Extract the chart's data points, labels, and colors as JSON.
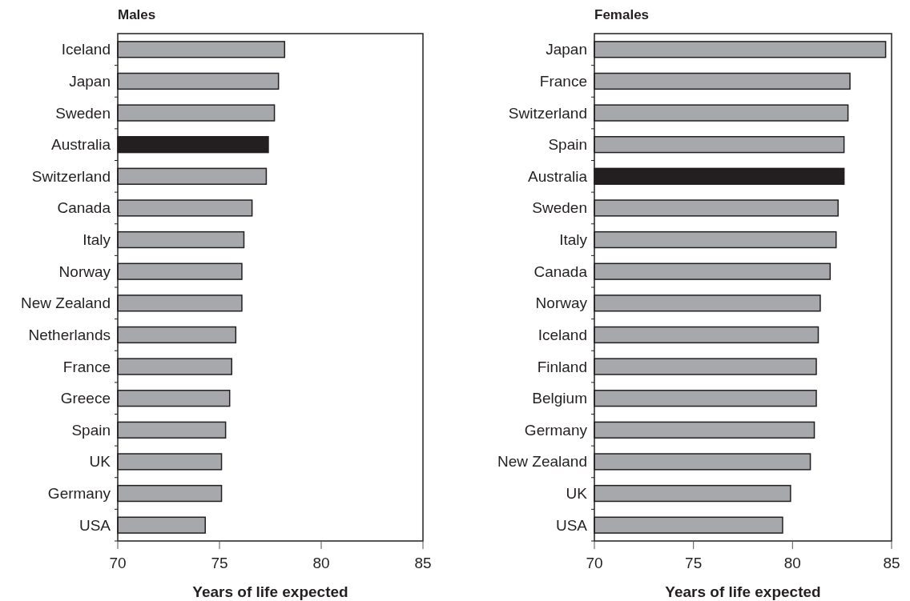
{
  "chart_data": [
    {
      "type": "bar",
      "orientation": "horizontal",
      "title": "Males",
      "xlabel": "Years of life expected",
      "categories": [
        "Iceland",
        "Japan",
        "Sweden",
        "Australia",
        "Switzerland",
        "Canada",
        "Italy",
        "Norway",
        "New Zealand",
        "Netherlands",
        "France",
        "Greece",
        "Spain",
        "UK",
        "Germany",
        "USA"
      ],
      "values": [
        78.2,
        77.9,
        77.7,
        77.4,
        77.3,
        76.6,
        76.2,
        76.1,
        76.1,
        75.8,
        75.6,
        75.5,
        75.3,
        75.1,
        75.1,
        74.3
      ],
      "colors": [
        "#a6a8ab",
        "#a6a8ab",
        "#a6a8ab",
        "#231f20",
        "#a6a8ab",
        "#a6a8ab",
        "#a6a8ab",
        "#a6a8ab",
        "#a6a8ab",
        "#a6a8ab",
        "#a6a8ab",
        "#a6a8ab",
        "#a6a8ab",
        "#a6a8ab",
        "#a6a8ab",
        "#a6a8ab"
      ],
      "xlim": [
        70,
        85
      ],
      "xticks": [
        70,
        75,
        80,
        85
      ]
    },
    {
      "type": "bar",
      "orientation": "horizontal",
      "title": "Females",
      "xlabel": "Years of life expected",
      "categories": [
        "Japan",
        "France",
        "Switzerland",
        "Spain",
        "Australia",
        "Sweden",
        "Italy",
        "Canada",
        "Norway",
        "Iceland",
        "Finland",
        "Belgium",
        "Germany",
        "New Zealand",
        "UK",
        "USA"
      ],
      "values": [
        84.7,
        82.9,
        82.8,
        82.6,
        82.6,
        82.3,
        82.2,
        81.9,
        81.4,
        81.3,
        81.2,
        81.2,
        81.1,
        80.9,
        79.9,
        79.5
      ],
      "colors": [
        "#a6a8ab",
        "#a6a8ab",
        "#a6a8ab",
        "#a6a8ab",
        "#231f20",
        "#a6a8ab",
        "#a6a8ab",
        "#a6a8ab",
        "#a6a8ab",
        "#a6a8ab",
        "#a6a8ab",
        "#a6a8ab",
        "#a6a8ab",
        "#a6a8ab",
        "#a6a8ab",
        "#a6a8ab"
      ],
      "xlim": [
        70,
        85
      ],
      "xticks": [
        70,
        75,
        80,
        85
      ]
    }
  ]
}
